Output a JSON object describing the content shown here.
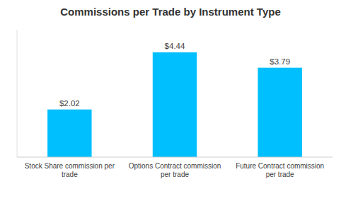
{
  "chart_data": {
    "type": "bar",
    "title": "Commissions per Trade by Instrument Type",
    "categories": [
      "Stock Share commission per\ntrade",
      "Options Contract commission\nper trade",
      "Future Contract commission\nper trade"
    ],
    "values": [
      2.02,
      4.44,
      3.79
    ],
    "value_labels": [
      "$2.02",
      "$4.44",
      "$3.79"
    ],
    "data_labels": true,
    "color": "#00BFFF",
    "ylim": [
      0,
      5.4
    ],
    "grid": false,
    "tick_labels": "x"
  }
}
